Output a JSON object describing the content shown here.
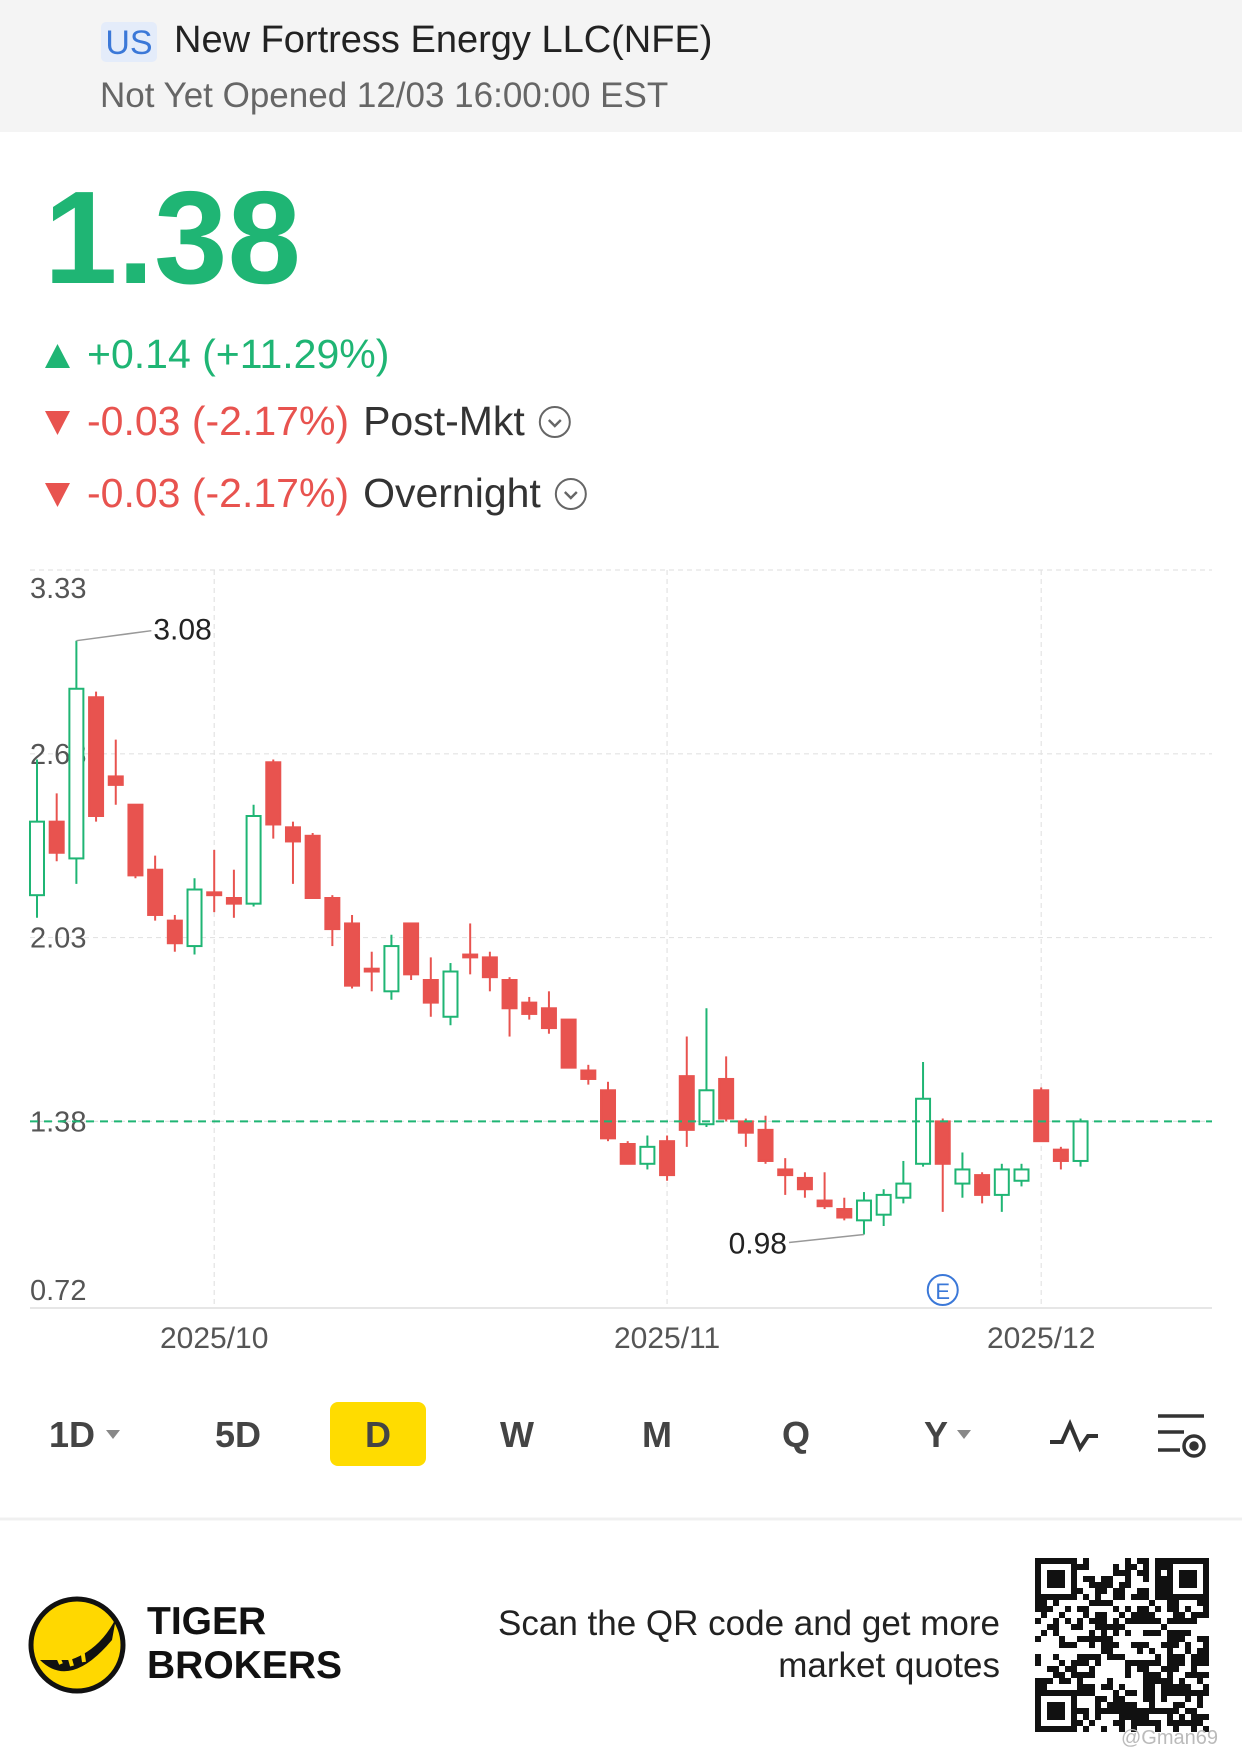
{
  "header": {
    "market": "US",
    "name": "New Fortress Energy LLC(NFE)",
    "status": "Not Yet Opened 12/03 16:00:00 EST"
  },
  "quote": {
    "price": "1.38",
    "change": "+0.14 (+11.29%)",
    "post_change": "-0.03 (-2.17%)",
    "post_label": "Post-Mkt",
    "overnight_change": "-0.03 (-2.17%)",
    "overnight_label": "Overnight"
  },
  "chart_data": {
    "type": "candlestick",
    "categories": [
      null,
      null,
      null,
      null,
      null,
      null,
      null,
      null,
      null,
      "2025/10",
      null,
      null,
      null,
      null,
      null,
      null,
      null,
      null,
      null,
      null,
      null,
      null,
      null,
      null,
      null,
      null,
      null,
      null,
      null,
      null,
      null,
      null,
      "2025/11",
      null,
      null,
      null,
      null,
      null,
      null,
      null,
      null,
      null,
      null,
      null,
      null,
      null,
      null,
      null,
      null,
      null,
      null,
      "2025/12",
      null,
      null
    ],
    "open": [
      2.18,
      2.44,
      2.31,
      2.88,
      2.6,
      2.5,
      2.27,
      2.09,
      2.0,
      2.19,
      2.17,
      2.15,
      2.65,
      2.42,
      2.39,
      2.17,
      2.08,
      1.92,
      1.84,
      2.08,
      1.88,
      1.75,
      1.97,
      1.96,
      1.88,
      1.8,
      1.78,
      1.74,
      1.56,
      1.49,
      1.3,
      1.23,
      1.31,
      1.54,
      1.37,
      1.53,
      1.38,
      1.35,
      1.21,
      1.18,
      1.1,
      1.07,
      1.03,
      1.05,
      1.11,
      1.23,
      1.38,
      1.16,
      1.19,
      1.12,
      1.17,
      1.49,
      1.28,
      1.24
    ],
    "high": [
      2.66,
      2.54,
      3.08,
      2.9,
      2.73,
      2.5,
      2.32,
      2.11,
      2.24,
      2.34,
      2.27,
      2.5,
      2.66,
      2.44,
      2.4,
      2.18,
      2.11,
      1.98,
      2.04,
      2.08,
      1.96,
      1.94,
      2.08,
      1.98,
      1.89,
      1.82,
      1.84,
      1.74,
      1.58,
      1.52,
      1.31,
      1.33,
      1.33,
      1.68,
      1.78,
      1.61,
      1.39,
      1.4,
      1.25,
      1.2,
      1.2,
      1.11,
      1.13,
      1.14,
      1.24,
      1.59,
      1.39,
      1.27,
      1.2,
      1.23,
      1.23,
      1.5,
      1.29,
      1.39
    ],
    "low": [
      2.1,
      2.3,
      2.22,
      2.44,
      2.5,
      2.24,
      2.09,
      1.98,
      1.97,
      2.12,
      2.1,
      2.14,
      2.38,
      2.22,
      2.17,
      2.0,
      1.85,
      1.84,
      1.81,
      1.88,
      1.75,
      1.72,
      1.9,
      1.84,
      1.68,
      1.74,
      1.69,
      1.57,
      1.51,
      1.31,
      1.23,
      1.21,
      1.17,
      1.29,
      1.36,
      1.38,
      1.29,
      1.23,
      1.12,
      1.11,
      1.07,
      1.03,
      0.98,
      1.01,
      1.09,
      1.22,
      1.06,
      1.11,
      1.09,
      1.06,
      1.15,
      1.31,
      1.21,
      1.22
    ],
    "close": [
      2.44,
      2.33,
      2.91,
      2.46,
      2.57,
      2.25,
      2.11,
      2.01,
      2.2,
      2.18,
      2.15,
      2.46,
      2.43,
      2.37,
      2.17,
      2.06,
      1.86,
      1.91,
      2.0,
      1.9,
      1.8,
      1.91,
      1.96,
      1.89,
      1.78,
      1.76,
      1.71,
      1.57,
      1.53,
      1.32,
      1.23,
      1.29,
      1.19,
      1.35,
      1.49,
      1.39,
      1.34,
      1.24,
      1.19,
      1.14,
      1.08,
      1.04,
      1.1,
      1.12,
      1.16,
      1.46,
      1.23,
      1.21,
      1.12,
      1.21,
      1.21,
      1.31,
      1.24,
      1.38
    ],
    "up_color": "#1fb574",
    "down_color": "#e8534f",
    "ylim": [
      0.72,
      3.33
    ],
    "yticks": [
      3.33,
      2.68,
      2.03,
      1.38,
      0.72
    ],
    "grid": true,
    "price_line": true,
    "annotations": [
      3.08,
      0.98
    ],
    "event_marker": "E"
  },
  "toolbar": {
    "periods": [
      "1D",
      "5D",
      "D",
      "W",
      "M",
      "Q",
      "Y"
    ],
    "selected": "D"
  },
  "footer": {
    "brand": [
      "TIGER",
      "BROKERS"
    ],
    "promo": [
      "Scan the QR code and get more",
      "market quotes"
    ],
    "watermark": "@Gman69"
  }
}
